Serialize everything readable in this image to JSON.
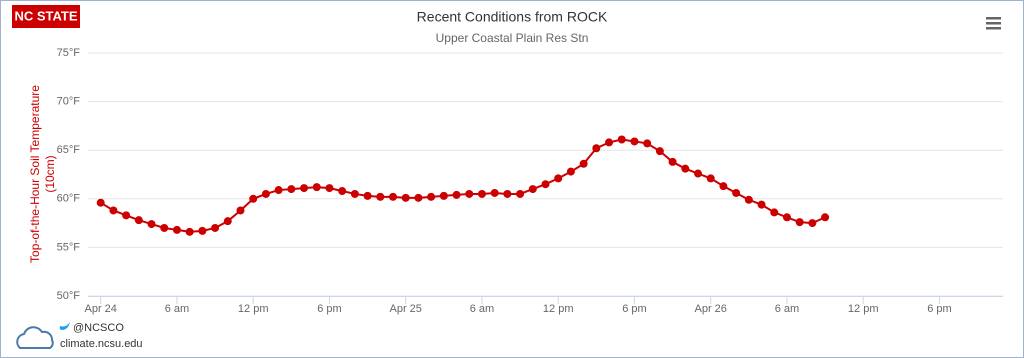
{
  "chart_data": {
    "type": "line",
    "title": "Recent Conditions from ROCK",
    "subtitle": "Upper Coastal Plain Res Stn",
    "y_label": [
      "Top-of-the-Hour Soil Temperature",
      "(10cm)"
    ],
    "x": [
      0,
      1,
      2,
      3,
      4,
      5,
      6,
      7,
      8,
      9,
      10,
      11,
      12,
      13,
      14,
      15,
      16,
      17,
      18,
      19,
      20,
      21,
      22,
      23,
      24,
      25,
      26,
      27,
      28,
      29,
      30,
      31,
      32,
      33,
      34,
      35,
      36,
      37,
      38,
      39,
      40,
      41,
      42,
      43,
      44,
      45,
      46,
      47,
      48,
      49,
      50,
      51,
      52,
      53,
      54,
      55,
      56,
      57
    ],
    "series": [
      {
        "name": "Soil Temperature",
        "color": "#cc0000",
        "values": [
          59.6,
          58.8,
          58.3,
          57.8,
          57.4,
          57.0,
          56.8,
          56.6,
          56.7,
          57.0,
          57.7,
          58.8,
          60.0,
          60.5,
          60.9,
          61.0,
          61.1,
          61.2,
          61.1,
          60.8,
          60.5,
          60.3,
          60.2,
          60.2,
          60.1,
          60.1,
          60.2,
          60.3,
          60.4,
          60.5,
          60.5,
          60.6,
          60.5,
          60.5,
          61.0,
          61.5,
          62.1,
          62.8,
          63.6,
          65.2,
          65.8,
          66.1,
          65.9,
          65.7,
          64.9,
          63.8,
          63.1,
          62.6,
          62.1,
          61.3,
          60.6,
          59.9,
          59.4,
          58.6,
          58.1,
          57.6,
          57.5,
          58.1
        ]
      }
    ],
    "xlim": [
      -1,
      71
    ],
    "xticks": [
      {
        "value": 0,
        "label": "Apr 24"
      },
      {
        "value": 6,
        "label": "6 am"
      },
      {
        "value": 12,
        "label": "12 pm"
      },
      {
        "value": 18,
        "label": "6 pm"
      },
      {
        "value": 24,
        "label": "Apr 25"
      },
      {
        "value": 30,
        "label": "6 am"
      },
      {
        "value": 36,
        "label": "12 pm"
      },
      {
        "value": 42,
        "label": "6 pm"
      },
      {
        "value": 48,
        "label": "Apr 26"
      },
      {
        "value": 54,
        "label": "6 am"
      },
      {
        "value": 60,
        "label": "12 pm"
      },
      {
        "value": 66,
        "label": "6 pm"
      }
    ],
    "ylim": [
      50,
      75
    ],
    "yticks": [
      {
        "value": 50,
        "label": "50°F"
      },
      {
        "value": 55,
        "label": "55°F"
      },
      {
        "value": 60,
        "label": "60°F"
      },
      {
        "value": 65,
        "label": "65°F"
      },
      {
        "value": 70,
        "label": "70°F"
      },
      {
        "value": 75,
        "label": "75°F"
      }
    ],
    "grid": true
  },
  "branding": {
    "logo": "NC STATE",
    "twitter": "@NCSCO",
    "site": "climate.ncsu.edu"
  }
}
